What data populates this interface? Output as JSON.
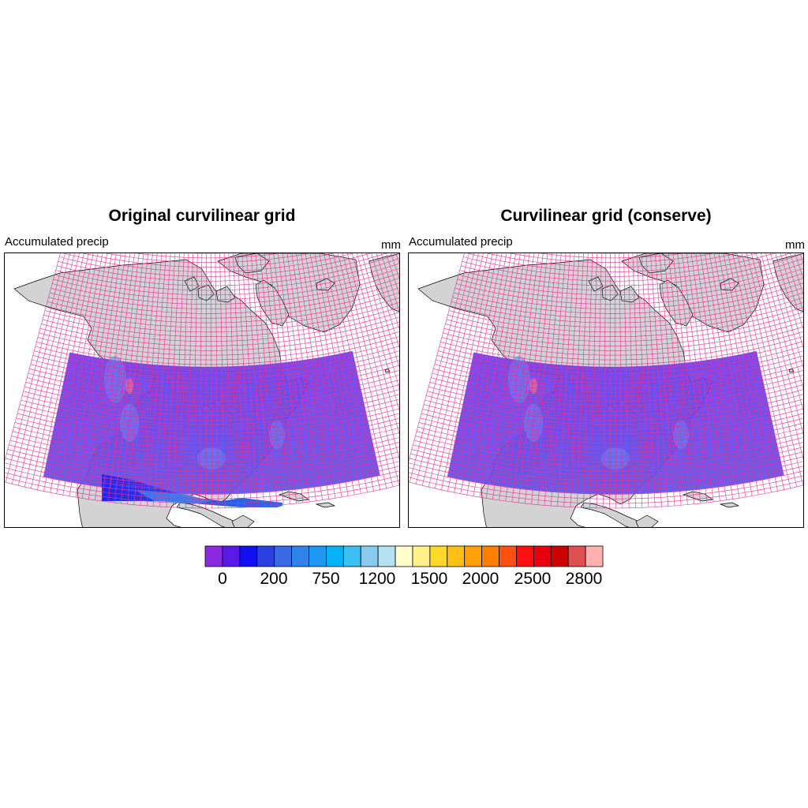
{
  "panels": [
    {
      "title": "Original curvilinear grid",
      "left_string": "Accumulated precip",
      "right_string": "mm",
      "grid_color": "#e0339a",
      "data_extends_south": true
    },
    {
      "title": "Curvilinear grid (conserve)",
      "left_string": "Accumulated precip",
      "right_string": "mm",
      "grid_color": "#e0339a",
      "data_extends_south": false
    }
  ],
  "colorbar": {
    "labels": [
      "0",
      "200",
      "750",
      "1200",
      "1500",
      "2000",
      "2500",
      "2800"
    ],
    "colors": [
      "#8a2be2",
      "#5a19e8",
      "#1010f0",
      "#2a40e0",
      "#3b6ae6",
      "#2f84ec",
      "#1d98f4",
      "#08b2f8",
      "#3cc0f4",
      "#88cbee",
      "#b6e1f0",
      "#fffdcc",
      "#fff08a",
      "#ffd92a",
      "#ffc016",
      "#ffa008",
      "#ff7f00",
      "#ff5010",
      "#ff1010",
      "#e80010",
      "#cc0000",
      "#e05050",
      "#ffb0b0"
    ]
  },
  "map": {
    "land_color": "#d3d3d3",
    "coast_color": "#000000",
    "ocean_color": "#ffffff"
  }
}
